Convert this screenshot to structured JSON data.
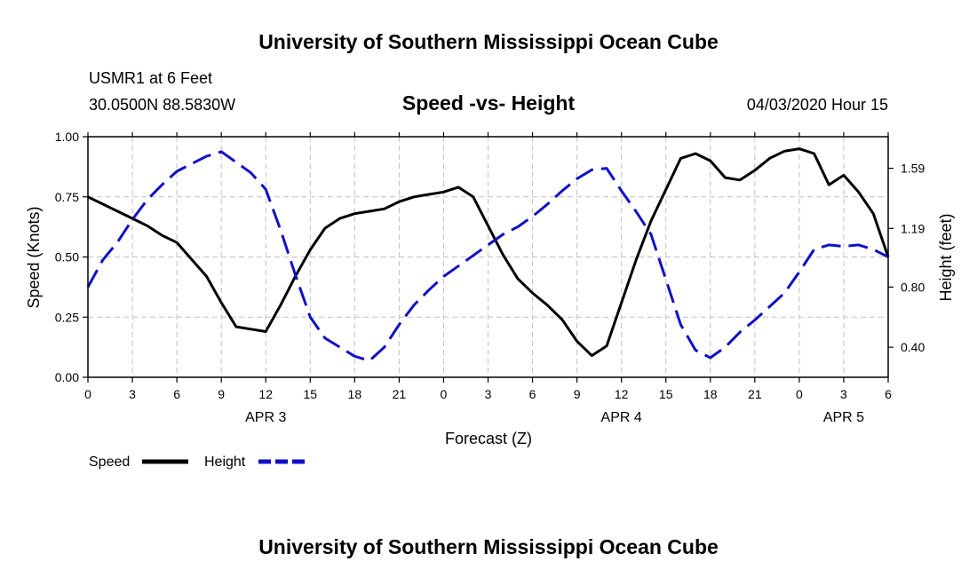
{
  "header": {
    "title": "University of Southern Mississippi Ocean Cube",
    "station": "USMR1 at 6 Feet",
    "coords": "30.0500N 88.5830W",
    "subtitle": "Speed -vs- Height",
    "date": "04/03/2020 Hour 15"
  },
  "footer": {
    "title": "University of Southern Mississippi Ocean Cube"
  },
  "colors": {
    "speed": "#000000",
    "height": "#1010c8",
    "grid": "#c0c0c0"
  },
  "chart_data": {
    "type": "line",
    "title": "Speed -vs- Height",
    "xlabel": "Forecast (Z)",
    "ylabel": "Speed (Knots)",
    "y2label": "Height (feet)",
    "x_range": [
      0,
      54
    ],
    "x_ticks": [
      0,
      3,
      6,
      9,
      12,
      15,
      18,
      21,
      24,
      27,
      30,
      33,
      36,
      39,
      42,
      45,
      48,
      51,
      54
    ],
    "x_tick_labels": [
      "0",
      "3",
      "6",
      "9",
      "12",
      "15",
      "18",
      "21",
      "0",
      "3",
      "6",
      "9",
      "12",
      "15",
      "18",
      "21",
      "0",
      "3",
      "6"
    ],
    "x_day_labels": [
      {
        "x": 12,
        "label": "APR 3"
      },
      {
        "x": 36,
        "label": "APR 4"
      },
      {
        "x": 51,
        "label": "APR 5"
      }
    ],
    "ylim": [
      0,
      1.0
    ],
    "y_ticks": [
      0,
      0.25,
      0.5,
      0.75,
      1.0
    ],
    "y_tick_labels": [
      "0.00",
      "0.25",
      "0.50",
      "0.75",
      "1.00"
    ],
    "y2lim": [
      0.2,
      1.8
    ],
    "y2_ticks": [
      0.4,
      0.8,
      1.19,
      1.59
    ],
    "y2_tick_labels": [
      "0.40",
      "0.80",
      "1.19",
      "1.59"
    ],
    "grid": true,
    "legend_position": "bottom-left",
    "series": [
      {
        "name": "Speed",
        "axis": "left",
        "style": "solid",
        "x": [
          0,
          1,
          2,
          3,
          4,
          5,
          6,
          7,
          8,
          9,
          10,
          11,
          12,
          13,
          14,
          15,
          16,
          17,
          18,
          19,
          20,
          21,
          22,
          23,
          24,
          25,
          26,
          27,
          28,
          29,
          30,
          31,
          32,
          33,
          34,
          35,
          36,
          37,
          38,
          39,
          40,
          41,
          42,
          43,
          44,
          45,
          46,
          47,
          48,
          49,
          50,
          51,
          52,
          53,
          54
        ],
        "values": [
          0.75,
          0.72,
          0.69,
          0.66,
          0.63,
          0.59,
          0.56,
          0.49,
          0.42,
          0.31,
          0.21,
          0.2,
          0.19,
          0.3,
          0.42,
          0.53,
          0.62,
          0.66,
          0.68,
          0.69,
          0.7,
          0.73,
          0.75,
          0.76,
          0.77,
          0.79,
          0.75,
          0.63,
          0.51,
          0.41,
          0.35,
          0.3,
          0.24,
          0.15,
          0.09,
          0.13,
          0.31,
          0.49,
          0.65,
          0.78,
          0.91,
          0.93,
          0.9,
          0.83,
          0.82,
          0.86,
          0.91,
          0.94,
          0.95,
          0.93,
          0.8,
          0.84,
          0.77,
          0.68,
          0.5
        ]
      },
      {
        "name": "Height",
        "axis": "right",
        "style": "dashed",
        "x": [
          0,
          1,
          2,
          3,
          4,
          5,
          6,
          7,
          8,
          9,
          10,
          11,
          12,
          13,
          14,
          15,
          16,
          17,
          18,
          19,
          20,
          21,
          22,
          23,
          24,
          25,
          26,
          27,
          28,
          29,
          30,
          31,
          32,
          33,
          34,
          35,
          36,
          37,
          38,
          39,
          40,
          41,
          42,
          43,
          44,
          45,
          46,
          47,
          48,
          49,
          50,
          51,
          52,
          53,
          54
        ],
        "values": [
          0.8,
          0.98,
          1.1,
          1.25,
          1.38,
          1.48,
          1.57,
          1.62,
          1.67,
          1.7,
          1.63,
          1.56,
          1.45,
          1.18,
          0.88,
          0.6,
          0.46,
          0.4,
          0.34,
          0.31,
          0.4,
          0.55,
          0.68,
          0.78,
          0.87,
          0.94,
          1.01,
          1.08,
          1.15,
          1.2,
          1.27,
          1.35,
          1.44,
          1.52,
          1.58,
          1.59,
          1.44,
          1.3,
          1.15,
          0.85,
          0.55,
          0.38,
          0.33,
          0.4,
          0.5,
          0.58,
          0.67,
          0.76,
          0.9,
          1.05,
          1.08,
          1.07,
          1.08,
          1.05,
          1.0
        ]
      }
    ]
  }
}
